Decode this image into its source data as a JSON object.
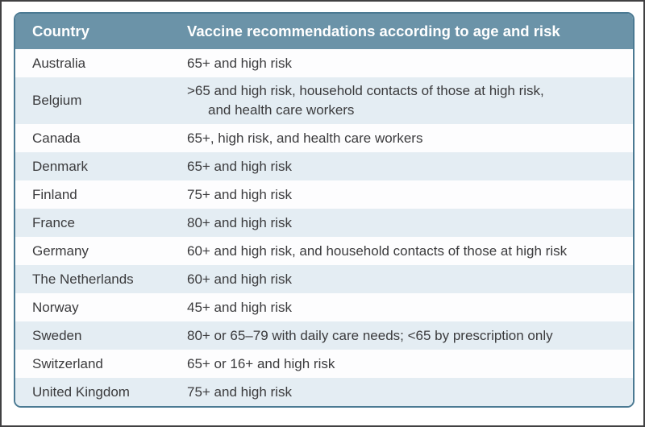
{
  "theme": {
    "frame": "#414042",
    "table_border": "#4b7a93",
    "header_bg": "#6b93a8",
    "header_text": "#ffffff",
    "row_bg": "#fdfdfe",
    "row_alt_bg": "#e4edf3",
    "text": "#3b3b3d",
    "page_bg": "#ffffff"
  },
  "table": {
    "columns": [
      {
        "label": "Country"
      },
      {
        "label": "Vaccine recommendations according to age and risk"
      }
    ],
    "rows": [
      {
        "country": "Australia",
        "rec": "65+ and high risk"
      },
      {
        "country": "Belgium",
        "rec": ">65 and high risk, household contacts of those at high risk,\nand health care workers"
      },
      {
        "country": "Canada",
        "rec": "65+, high risk, and health care workers"
      },
      {
        "country": "Denmark",
        "rec": "65+ and high risk"
      },
      {
        "country": "Finland",
        "rec": "75+ and high risk"
      },
      {
        "country": "France",
        "rec": "80+ and high risk"
      },
      {
        "country": "Germany",
        "rec": "60+ and high risk, and household contacts of those at high risk"
      },
      {
        "country": "The Netherlands",
        "rec": "60+ and high risk"
      },
      {
        "country": "Norway",
        "rec": "45+ and high risk"
      },
      {
        "country": "Sweden",
        "rec": "80+ or 65–79 with daily care needs; <65 by prescription only"
      },
      {
        "country": "Switzerland",
        "rec": "65+ or 16+ and high risk"
      },
      {
        "country": "United Kingdom",
        "rec": "75+ and high risk"
      }
    ]
  }
}
